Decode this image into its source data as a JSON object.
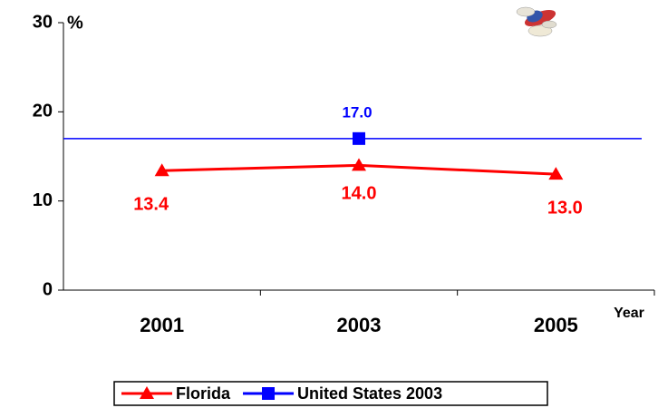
{
  "chart_data": {
    "type": "line",
    "y_label": "%",
    "x_label": "Year",
    "categories": [
      "2001",
      "2003",
      "2005"
    ],
    "series": [
      {
        "name": "Florida",
        "color": "#ff0000",
        "marker": "triangle",
        "values": [
          13.4,
          14.0,
          13.0
        ],
        "value_labels": [
          "13.4",
          "14.0",
          "13.0"
        ]
      },
      {
        "name": "United States 2003",
        "color": "#0000ff",
        "marker": "square",
        "reference_line": true,
        "values": [
          null,
          17.0,
          null
        ],
        "value_labels": [
          null,
          "17.0",
          null
        ]
      }
    ],
    "ylim": [
      0,
      30
    ],
    "yticks": [
      0,
      10,
      20,
      30
    ],
    "legend": "bottom"
  }
}
